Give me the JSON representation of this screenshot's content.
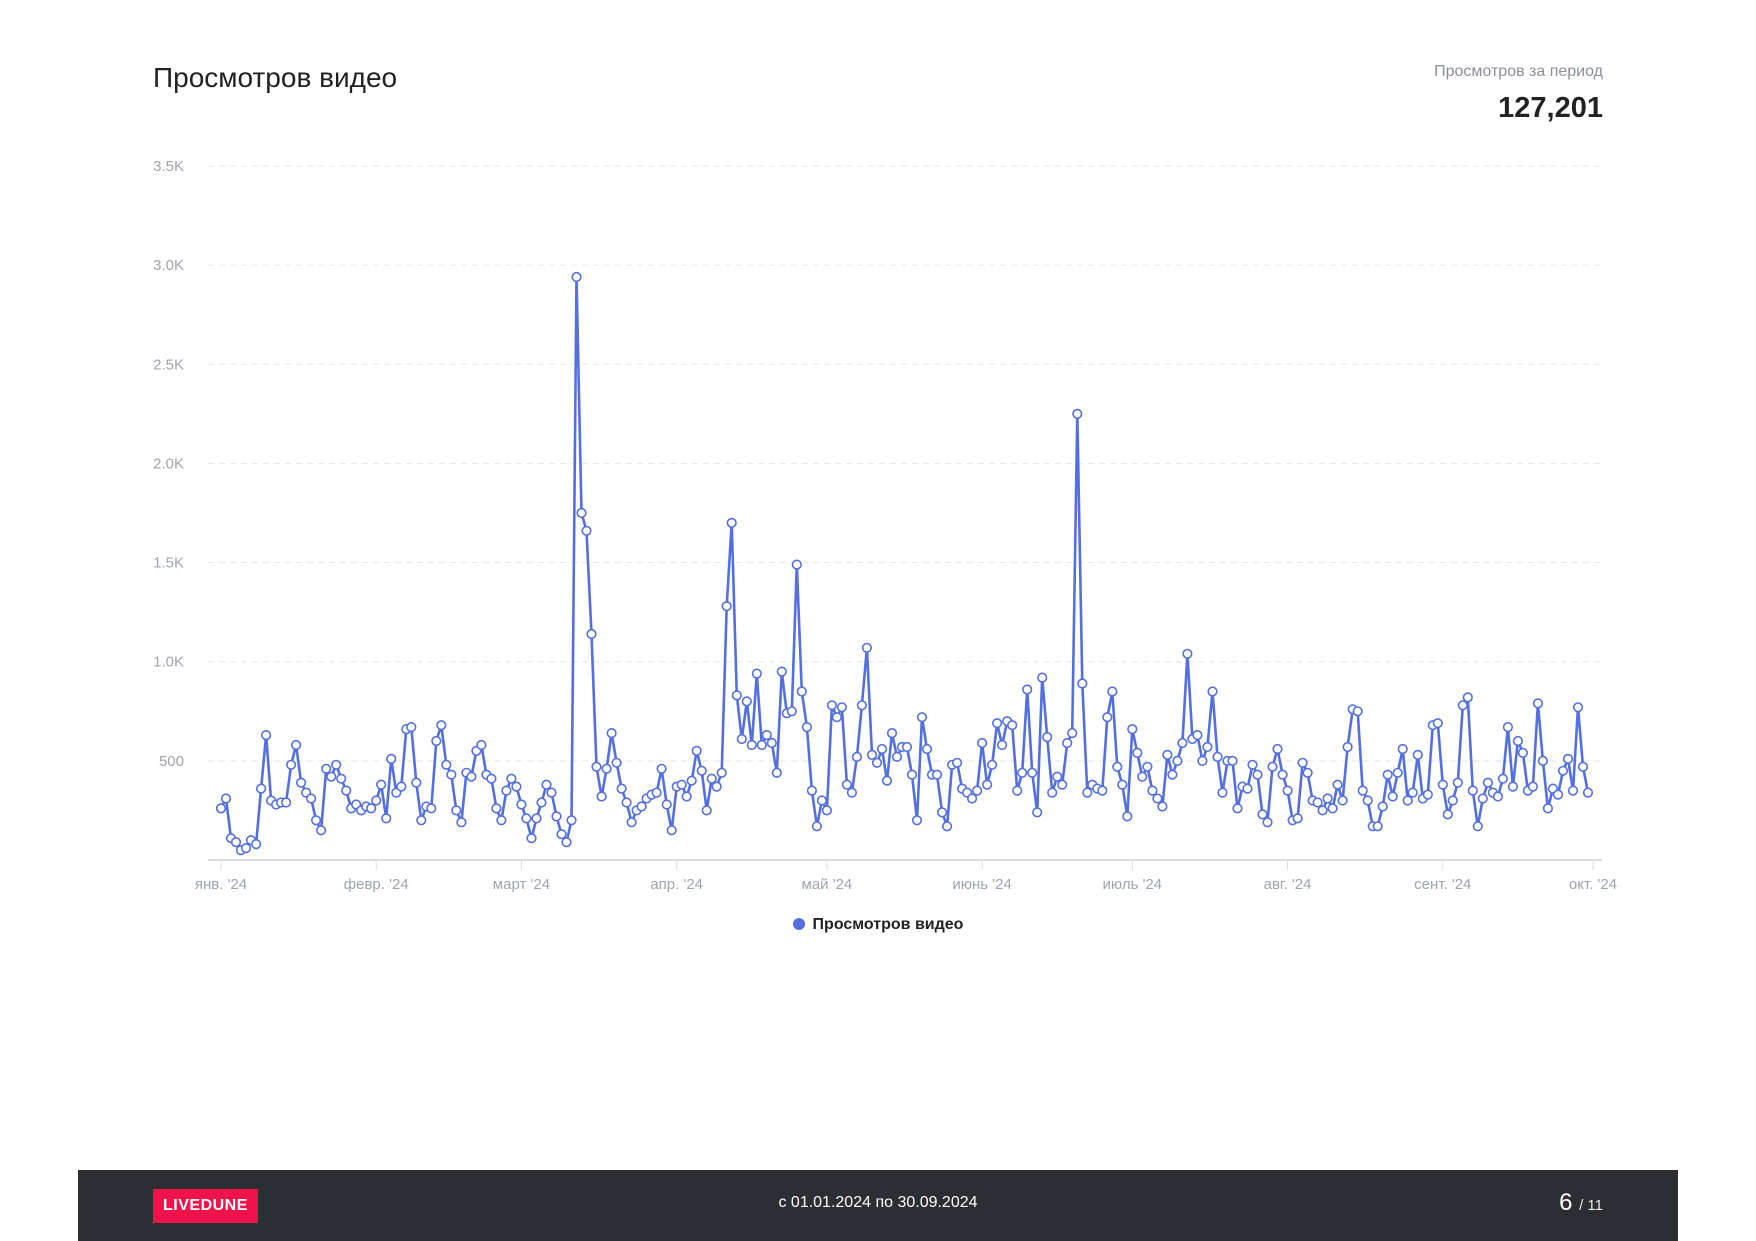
{
  "header": {
    "title": "Просмотров видео",
    "total_label": "Просмотров за период",
    "total_value": "127,201"
  },
  "legend": {
    "label": "Просмотров видео"
  },
  "footer": {
    "logo": "LIVEDUNE",
    "period": "с 01.01.2024 по 30.09.2024",
    "page_current": "6",
    "page_total": "/ 11"
  },
  "colors": {
    "series": "#5470e0",
    "accent": "#f0124a",
    "footer_bg": "#2c2e33"
  },
  "chart_data": {
    "type": "line",
    "title": "Просмотров видео",
    "xlabel": "",
    "ylabel": "",
    "ylim": [
      0,
      3500
    ],
    "grid": true,
    "legend_position": "bottom-center",
    "y_ticks": [
      "500",
      "1.0K",
      "1.5K",
      "2.0K",
      "2.5K",
      "3.0K",
      "3.5K"
    ],
    "x_ticks": [
      "янв. '24",
      "февр. '24",
      "март '24",
      "апр. '24",
      "май '24",
      "июнь '24",
      "июль '24",
      "авг. '24",
      "сент. '24",
      "окт. '24"
    ],
    "x_start": "2024-01-01",
    "x_end": "2024-09-30",
    "series": [
      {
        "name": "Просмотров видео",
        "values": [
          260,
          310,
          110,
          90,
          50,
          60,
          100,
          80,
          360,
          630,
          300,
          280,
          290,
          290,
          480,
          580,
          390,
          340,
          310,
          200,
          150,
          460,
          420,
          480,
          410,
          350,
          260,
          280,
          250,
          270,
          260,
          300,
          380,
          210,
          510,
          340,
          370,
          660,
          670,
          390,
          200,
          270,
          260,
          600,
          680,
          480,
          430,
          250,
          190,
          440,
          420,
          550,
          580,
          430,
          410,
          260,
          200,
          350,
          410,
          370,
          280,
          210,
          110,
          210,
          290,
          380,
          340,
          220,
          130,
          90,
          200,
          2940,
          1750,
          1660,
          1140,
          470,
          320,
          460,
          640,
          490,
          360,
          290,
          190,
          250,
          270,
          310,
          330,
          340,
          460,
          280,
          150,
          370,
          380,
          320,
          400,
          550,
          450,
          250,
          410,
          370,
          440,
          1280,
          1700,
          830,
          610,
          800,
          580,
          940,
          580,
          630,
          590,
          440,
          950,
          740,
          750,
          1490,
          850,
          670,
          350,
          170,
          300,
          250,
          780,
          720,
          770,
          380,
          340,
          520,
          780,
          1070,
          530,
          490,
          560,
          400,
          640,
          520,
          570,
          570,
          430,
          200,
          720,
          560,
          430,
          430,
          240,
          170,
          480,
          490,
          360,
          340,
          310,
          350,
          590,
          380,
          480,
          690,
          580,
          700,
          680,
          350,
          440,
          860,
          440,
          240,
          920,
          620,
          340,
          420,
          380,
          590,
          640,
          2250,
          890,
          340,
          380,
          360,
          350,
          720,
          850,
          470,
          380,
          220,
          660,
          540,
          420,
          470,
          350,
          310,
          270,
          530,
          430,
          500,
          590,
          1040,
          610,
          630,
          500,
          570,
          850,
          520,
          340,
          500,
          500,
          260,
          370,
          360,
          480,
          430,
          230,
          190,
          470,
          560,
          430,
          350,
          200,
          210,
          490,
          440,
          300,
          290,
          250,
          310,
          260,
          380,
          300,
          570,
          760,
          750,
          350,
          300,
          170,
          170,
          270,
          430,
          320,
          440,
          560,
          300,
          340,
          530,
          310,
          330,
          680,
          690,
          380,
          230,
          300,
          390,
          780,
          820,
          350,
          170,
          310,
          390,
          340,
          320,
          410,
          670,
          370,
          600,
          540,
          350,
          370,
          790,
          500,
          260,
          360,
          330,
          450,
          510,
          350,
          770,
          470,
          340
        ]
      }
    ]
  }
}
